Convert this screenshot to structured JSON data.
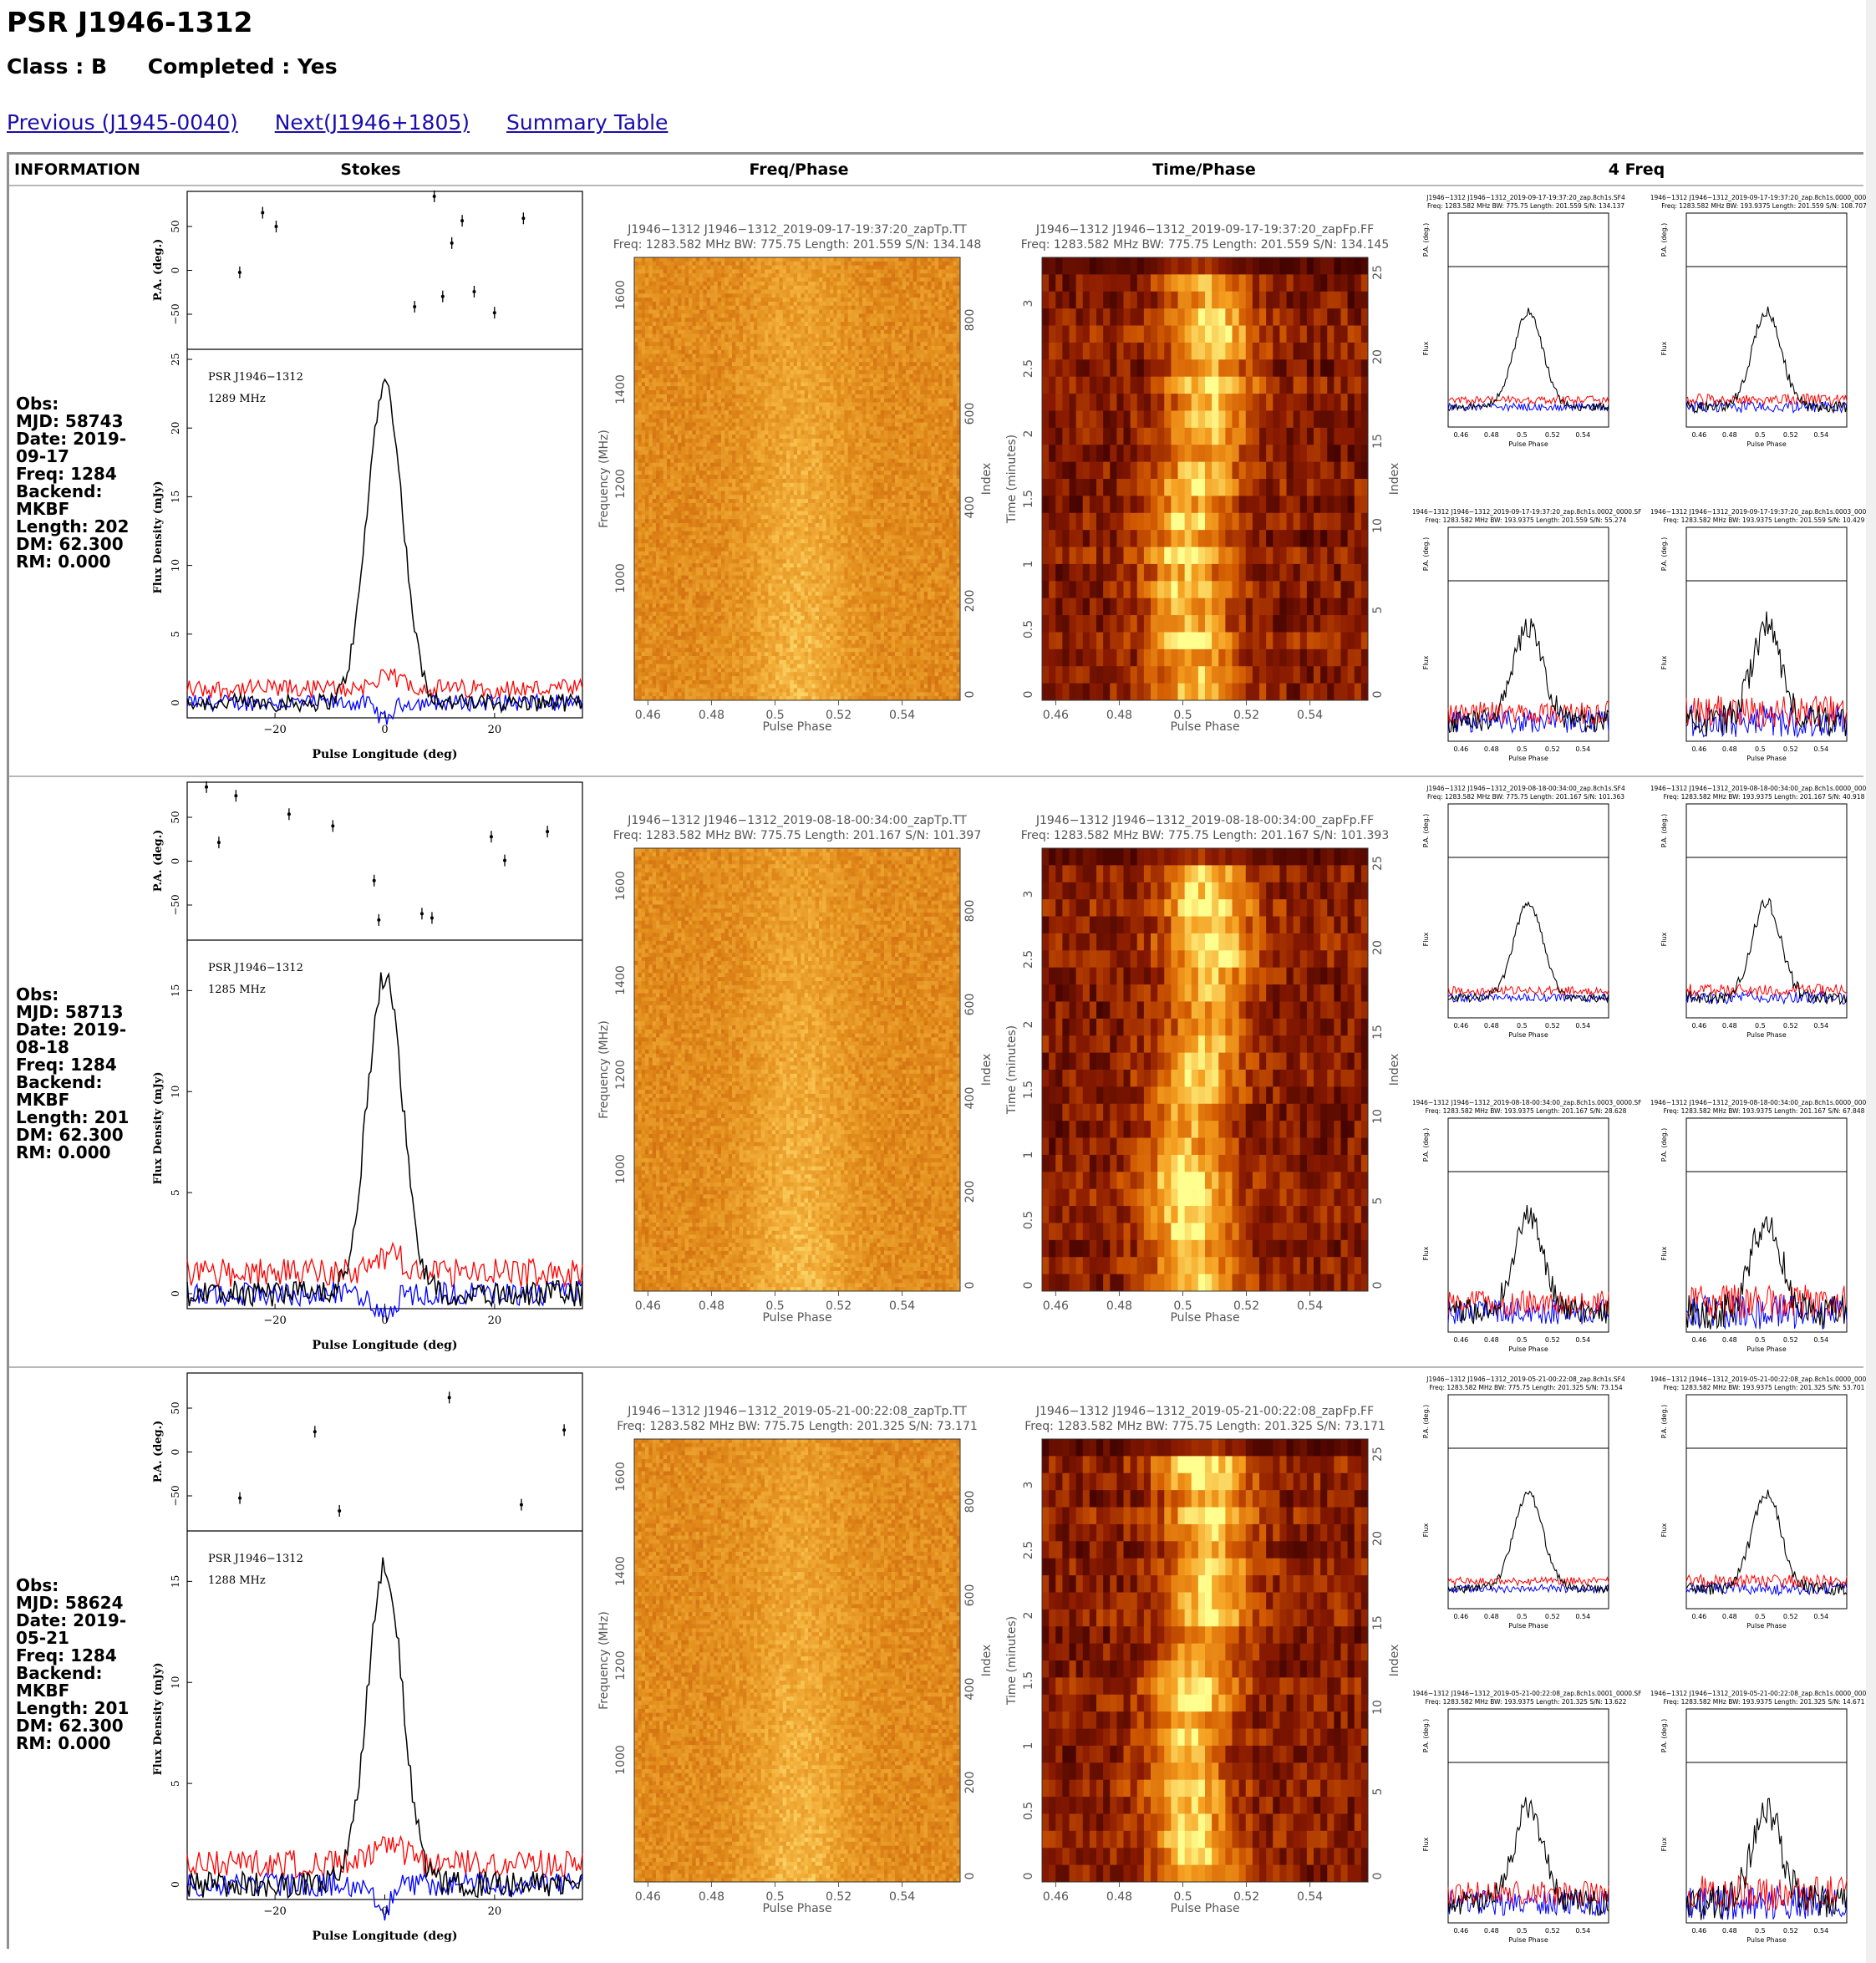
{
  "page": {
    "title": "PSR J1946-1312",
    "class_text": "Class : B",
    "completed_text": "Completed : Yes"
  },
  "nav": {
    "previous": "Previous (J1945-0040)",
    "next": "Next(J1946+1805)",
    "summary": "Summary Table"
  },
  "table": {
    "headers": [
      "INFORMATION",
      "Stokes",
      "Freq/Phase",
      "Time/Phase",
      "4 Freq"
    ]
  },
  "axes": {
    "pa_label": "P.A. (deg.)",
    "flux_label": "Flux Density (mJy)",
    "pulse_long_label": "Pulse Longitude (deg)",
    "freq_label": "Frequency (MHz)",
    "time_label": "Time (minutes)",
    "index_label": "Index",
    "phase_label": "Pulse Phase",
    "small_flux_label": "Flux",
    "small_pa_label": "P.A. (deg.)",
    "long_ticks": [
      "−20",
      "0",
      "20"
    ],
    "pa_ticks": [
      "50",
      "0",
      "−50"
    ],
    "phase_ticks": [
      "0.46",
      "0.48",
      "0.5",
      "0.52",
      "0.54"
    ],
    "freq_ticks": [
      "1600",
      "1400",
      "1200",
      "1000"
    ],
    "freq_index_ticks": [
      "800",
      "600",
      "400",
      "200",
      "0"
    ],
    "time_ticks": [
      "3",
      "2.5",
      "2",
      "1.5",
      "1",
      "0.5",
      "0"
    ],
    "time_index_ticks": [
      "25",
      "20",
      "15",
      "10",
      "5",
      "0"
    ]
  },
  "observations": [
    {
      "obs": "Obs:",
      "mjd": "MJD: 58743",
      "date": "Date: 2019-09-17",
      "freq": "Freq: 1284",
      "backend": "Backend: MKBF",
      "length": "Length: 202",
      "dm": "DM: 62.300",
      "rm": "RM: 0.000",
      "stokes_psr": "PSR J1946−1312",
      "stokes_mhz": "1289 MHz",
      "flux_ticks": [
        "25",
        "20",
        "15",
        "10",
        "5",
        "0"
      ],
      "fp_title": "J1946−1312 J1946−1312_2019-09-17-19:37:20_zapTp.TT",
      "fp_sub": "Freq: 1283.582 MHz BW: 775.75 Length: 201.559 S/N: 134.148",
      "tp_title": "J1946−1312 J1946−1312_2019-09-17-19:37:20_zapFp.FF",
      "tp_sub": "Freq: 1283.582 MHz BW: 775.75 Length: 201.559 S/N: 134.145",
      "four_freq": [
        {
          "t1": "J1946−1312 J1946−1312_2019-09-17-19:37:20_zap.8ch1s.SF4",
          "t2": "Freq: 1283.582 MHz BW: 775.75 Length: 201.559 S/N: 134.137"
        },
        {
          "t1": "J1946−1312 J1946−1312_2019-09-17-19:37:20_zap.8ch1s.0000_0000.SF",
          "t2": "Freq: 1283.582 MHz BW: 193.9375 Length: 201.559 S/N: 108.707"
        },
        {
          "t1": "J1946−1312 J1946−1312_2019-09-17-19:37:20_zap.8ch1s.0002_0000.SF",
          "t2": "Freq: 1283.582 MHz BW: 193.9375 Length: 201.559 S/N: 55.274"
        },
        {
          "t1": "J1946−1312 J1946−1312_2019-09-17-19:37:20_zap.8ch1s.0003_0000.SF",
          "t2": "Freq: 1283.582 MHz BW: 193.9375 Length: 201.559 S/N: 10.429"
        }
      ]
    },
    {
      "obs": "Obs:",
      "mjd": "MJD: 58713",
      "date": "Date: 2019-08-18",
      "freq": "Freq: 1284",
      "backend": "Backend: MKBF",
      "length": "Length: 201",
      "dm": "DM: 62.300",
      "rm": "RM: 0.000",
      "stokes_psr": "PSR J1946−1312",
      "stokes_mhz": "1285 MHz",
      "flux_ticks": [
        "15",
        "10",
        "5",
        "0"
      ],
      "fp_title": "J1946−1312 J1946−1312_2019-08-18-00:34:00_zapTp.TT",
      "fp_sub": "Freq: 1283.582 MHz BW: 775.75 Length: 201.167 S/N: 101.397",
      "tp_title": "J1946−1312 J1946−1312_2019-08-18-00:34:00_zapFp.FF",
      "tp_sub": "Freq: 1283.582 MHz BW: 775.75 Length: 201.167 S/N: 101.393",
      "four_freq": [
        {
          "t1": "J1946−1312 J1946−1312_2019-08-18-00:34:00_zap.8ch1s.SF4",
          "t2": "Freq: 1283.582 MHz BW: 775.75 Length: 201.167 S/N: 101.363"
        },
        {
          "t1": "J1946−1312 J1946−1312_2019-08-18-00:34:00_zap.8ch1s.0000_0000.SF",
          "t2": "Freq: 1283.582 MHz BW: 193.9375 Length: 201.167 S/N: 40.918"
        },
        {
          "t1": "J1946−1312 J1946−1312_2019-08-18-00:34:00_zap.8ch1s.0003_0000.SF",
          "t2": "Freq: 1283.582 MHz BW: 193.9375 Length: 201.167 S/N: 28.628"
        },
        {
          "t1": "J1946−1312 J1946−1312_2019-08-18-00:34:00_zap.8ch1s.0000_0000.SF",
          "t2": "Freq: 1283.582 MHz BW: 193.9375 Length: 201.167 S/N: 67.848"
        }
      ]
    },
    {
      "obs": "Obs:",
      "mjd": "MJD: 58624",
      "date": "Date: 2019-05-21",
      "freq": "Freq: 1284",
      "backend": "Backend: MKBF",
      "length": "Length: 201",
      "dm": "DM: 62.300",
      "rm": "RM: 0.000",
      "stokes_psr": "PSR J1946−1312",
      "stokes_mhz": "1288 MHz",
      "flux_ticks": [
        "15",
        "10",
        "5",
        "0"
      ],
      "fp_title": "J1946−1312 J1946−1312_2019-05-21-00:22:08_zapTp.TT",
      "fp_sub": "Freq: 1283.582 MHz BW: 775.75 Length: 201.325 S/N: 73.171",
      "tp_title": "J1946−1312 J1946−1312_2019-05-21-00:22:08_zapFp.FF",
      "tp_sub": "Freq: 1283.582 MHz BW: 775.75 Length: 201.325 S/N: 73.171",
      "four_freq": [
        {
          "t1": "J1946−1312 J1946−1312_2019-05-21-00:22:08_zap.8ch1s.SF4",
          "t2": "Freq: 1283.582 MHz BW: 775.75 Length: 201.325 S/N: 73.154"
        },
        {
          "t1": "J1946−1312 J1946−1312_2019-05-21-00:22:08_zap.8ch1s.0000_0000.SF",
          "t2": "Freq: 1283.582 MHz BW: 193.9375 Length: 201.325 S/N: 53.701"
        },
        {
          "t1": "J1946−1312 J1946−1312_2019-05-21-00:22:08_zap.8ch1s.0001_0000.SF",
          "t2": "Freq: 1283.582 MHz BW: 193.9375 Length: 201.325 S/N: 13.622"
        },
        {
          "t1": "J1946−1312 J1946−1312_2019-05-21-00:22:08_zap.8ch1s.0000_0000.SF",
          "t2": "Freq: 1283.582 MHz BW: 193.9375 Length: 201.325 S/N: 14.671"
        }
      ]
    }
  ],
  "colors": {
    "link": "#1a0dab",
    "total_intensity": "#000000",
    "linear_pol": "#ff0000",
    "circular_pol": "#0000ff",
    "heatmap_fp": [
      "#c85a0a",
      "#e08a1a",
      "#f4b23c",
      "#fff08a"
    ],
    "heatmap_tp": [
      "#3a0000",
      "#8a1a00",
      "#d25a00",
      "#f5a020",
      "#ffff90"
    ]
  }
}
